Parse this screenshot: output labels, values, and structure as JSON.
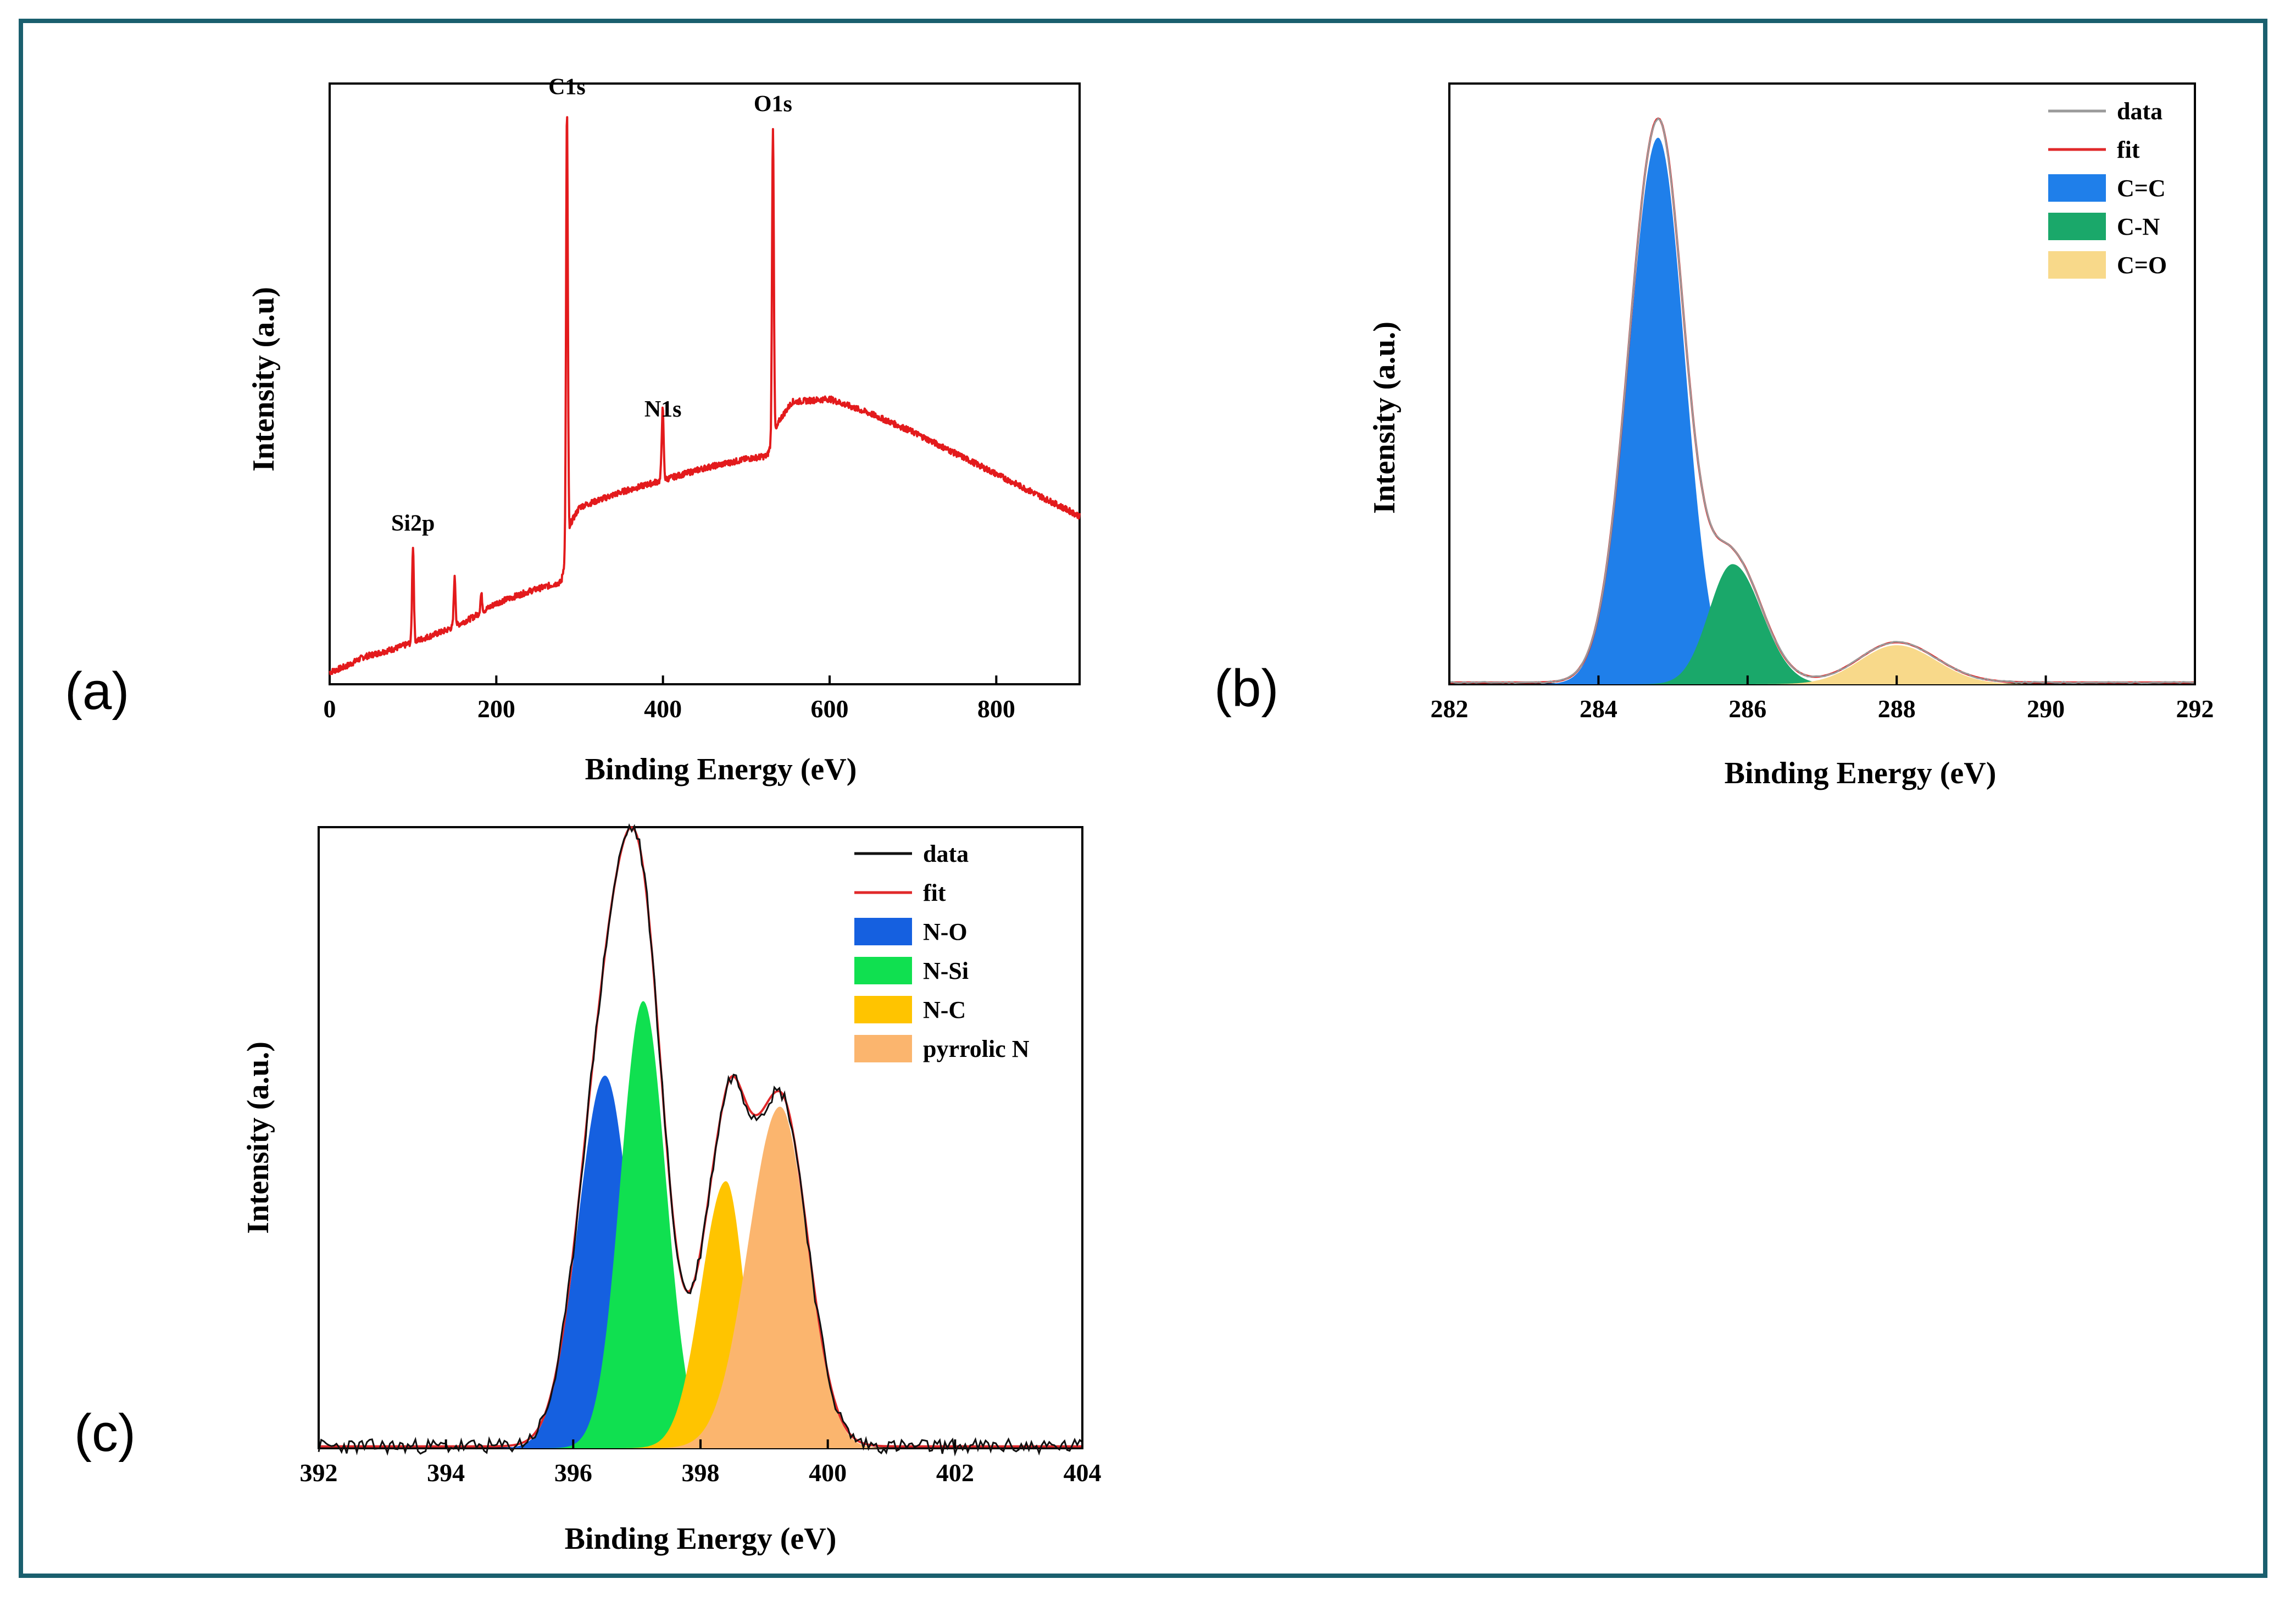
{
  "colors": {
    "frame": "#1a5f6e",
    "survey_line": "#e31a1c",
    "fit_line": "#e0282a",
    "data_line_b": "#9a9a9a",
    "data_line_c": "#111111"
  },
  "chart_data": [
    {
      "id": "a",
      "panel_label": "(a)",
      "type": "line",
      "title": "",
      "xlabel": "Binding Energy (eV)",
      "ylabel": "Intensity (a.u)",
      "xlim": [
        0,
        900
      ],
      "ylim": [
        0,
        100
      ],
      "xticks": [
        0,
        200,
        400,
        600,
        800
      ],
      "background": [
        [
          0,
          2
        ],
        [
          20,
          3
        ],
        [
          40,
          4.5
        ],
        [
          80,
          6
        ],
        [
          110,
          7.5
        ],
        [
          140,
          9
        ],
        [
          170,
          11
        ],
        [
          200,
          13.5
        ],
        [
          240,
          15.5
        ],
        [
          278,
          17
        ],
        [
          290,
          27
        ],
        [
          300,
          29.5
        ],
        [
          350,
          32
        ],
        [
          400,
          34
        ],
        [
          450,
          36
        ],
        [
          500,
          37.5
        ],
        [
          525,
          38
        ],
        [
          540,
          44
        ],
        [
          555,
          47
        ],
        [
          600,
          47.5
        ],
        [
          650,
          45
        ],
        [
          700,
          42
        ],
        [
          750,
          38.5
        ],
        [
          800,
          35
        ],
        [
          850,
          31.5
        ],
        [
          900,
          28
        ]
      ],
      "peaks": [
        {
          "label": "Si2p",
          "x": 100,
          "height": 16
        },
        {
          "x": 150,
          "height": 8
        },
        {
          "x": 182,
          "height": 3
        },
        {
          "label": "C1s",
          "x": 284.8,
          "height": 73
        },
        {
          "x": 399,
          "height": 5
        },
        {
          "label": "N1s",
          "x": 400,
          "height": 8
        },
        {
          "label": "O1s",
          "x": 532,
          "height": 52
        }
      ]
    },
    {
      "id": "b",
      "panel_label": "(b)",
      "type": "area",
      "title": "",
      "xlabel": "Binding Energy (eV)",
      "ylabel": "Intensity (a.u.)",
      "xlim": [
        282,
        292
      ],
      "ylim": [
        0,
        100
      ],
      "xticks": [
        282,
        284,
        286,
        288,
        290,
        292
      ],
      "legend": {
        "position": "top-right",
        "entries": [
          "data",
          "fit",
          "C=C",
          "C-N",
          "C=O"
        ]
      },
      "series": [
        {
          "name": "C=C",
          "type": "area",
          "color": "#1f7fea",
          "center": 284.8,
          "height": 91,
          "width_left": 0.55,
          "width_right": 0.5
        },
        {
          "name": "C-N",
          "type": "area",
          "color": "#1aa86a",
          "center": 285.8,
          "height": 20,
          "width_left": 0.45,
          "width_right": 0.55
        },
        {
          "name": "C=O",
          "type": "area",
          "color": "#f8d98a",
          "center": 288.0,
          "height": 6.5,
          "width_left": 0.7,
          "width_right": 0.75
        },
        {
          "name": "fit",
          "type": "line",
          "color": "#e0282a"
        },
        {
          "name": "data",
          "type": "line",
          "color": "#9a9a9a"
        }
      ]
    },
    {
      "id": "c",
      "panel_label": "(c)",
      "type": "area",
      "title": "",
      "xlabel": "Binding Energy (eV)",
      "ylabel": "Intensity (a.u.)",
      "xlim": [
        392,
        404
      ],
      "ylim": [
        0,
        100
      ],
      "xticks": [
        392,
        394,
        396,
        398,
        400,
        402,
        404
      ],
      "legend": {
        "position": "top-right",
        "entries": [
          "data",
          "fit",
          "N-O",
          "N-Si",
          "N-C",
          "pyrrolic N"
        ]
      },
      "series": [
        {
          "name": "N-O",
          "type": "area",
          "color": "#1560e0",
          "center": 396.5,
          "height": 60,
          "width_left": 0.6,
          "width_right": 0.55
        },
        {
          "name": "N-Si",
          "type": "area",
          "color": "#10e050",
          "center": 397.1,
          "height": 72,
          "width_left": 0.5,
          "width_right": 0.5
        },
        {
          "name": "N-C",
          "type": "area",
          "color": "#ffc400",
          "center": 398.4,
          "height": 43,
          "width_left": 0.55,
          "width_right": 0.4
        },
        {
          "name": "pyrrolic N",
          "type": "area",
          "color": "#fbb56e",
          "center": 399.25,
          "height": 55,
          "width_left": 0.7,
          "width_right": 0.6
        },
        {
          "name": "fit",
          "type": "line",
          "color": "#e0282a"
        },
        {
          "name": "data",
          "type": "line",
          "color": "#111111"
        }
      ]
    }
  ]
}
